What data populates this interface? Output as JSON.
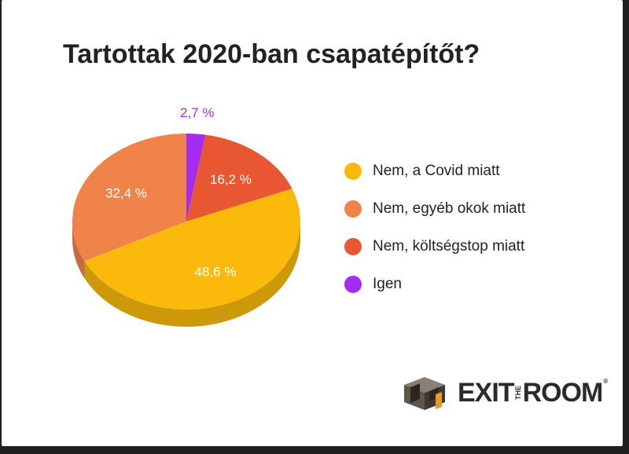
{
  "chart_data": {
    "type": "pie",
    "title": "Tartottak 2020-ban csapatépítőt?",
    "series": [
      {
        "name": "Nem, a Covid miatt",
        "value": 48.6,
        "label": "48,6 %",
        "color": "#FBBA0B"
      },
      {
        "name": "Nem, egyéb okok miatt",
        "value": 32.4,
        "label": "32,4 %",
        "color": "#F0834A"
      },
      {
        "name": "Nem, költségstop miatt",
        "value": 16.2,
        "label": "16,2 %",
        "color": "#E85632"
      },
      {
        "name": "Igen",
        "value": 2.7,
        "label": "2,7 %",
        "color": "#A42BF0"
      }
    ],
    "legend_position": "right"
  },
  "logo": {
    "exit": "EXIT",
    "the": "THE",
    "room": "ROOM",
    "reg": "®"
  }
}
